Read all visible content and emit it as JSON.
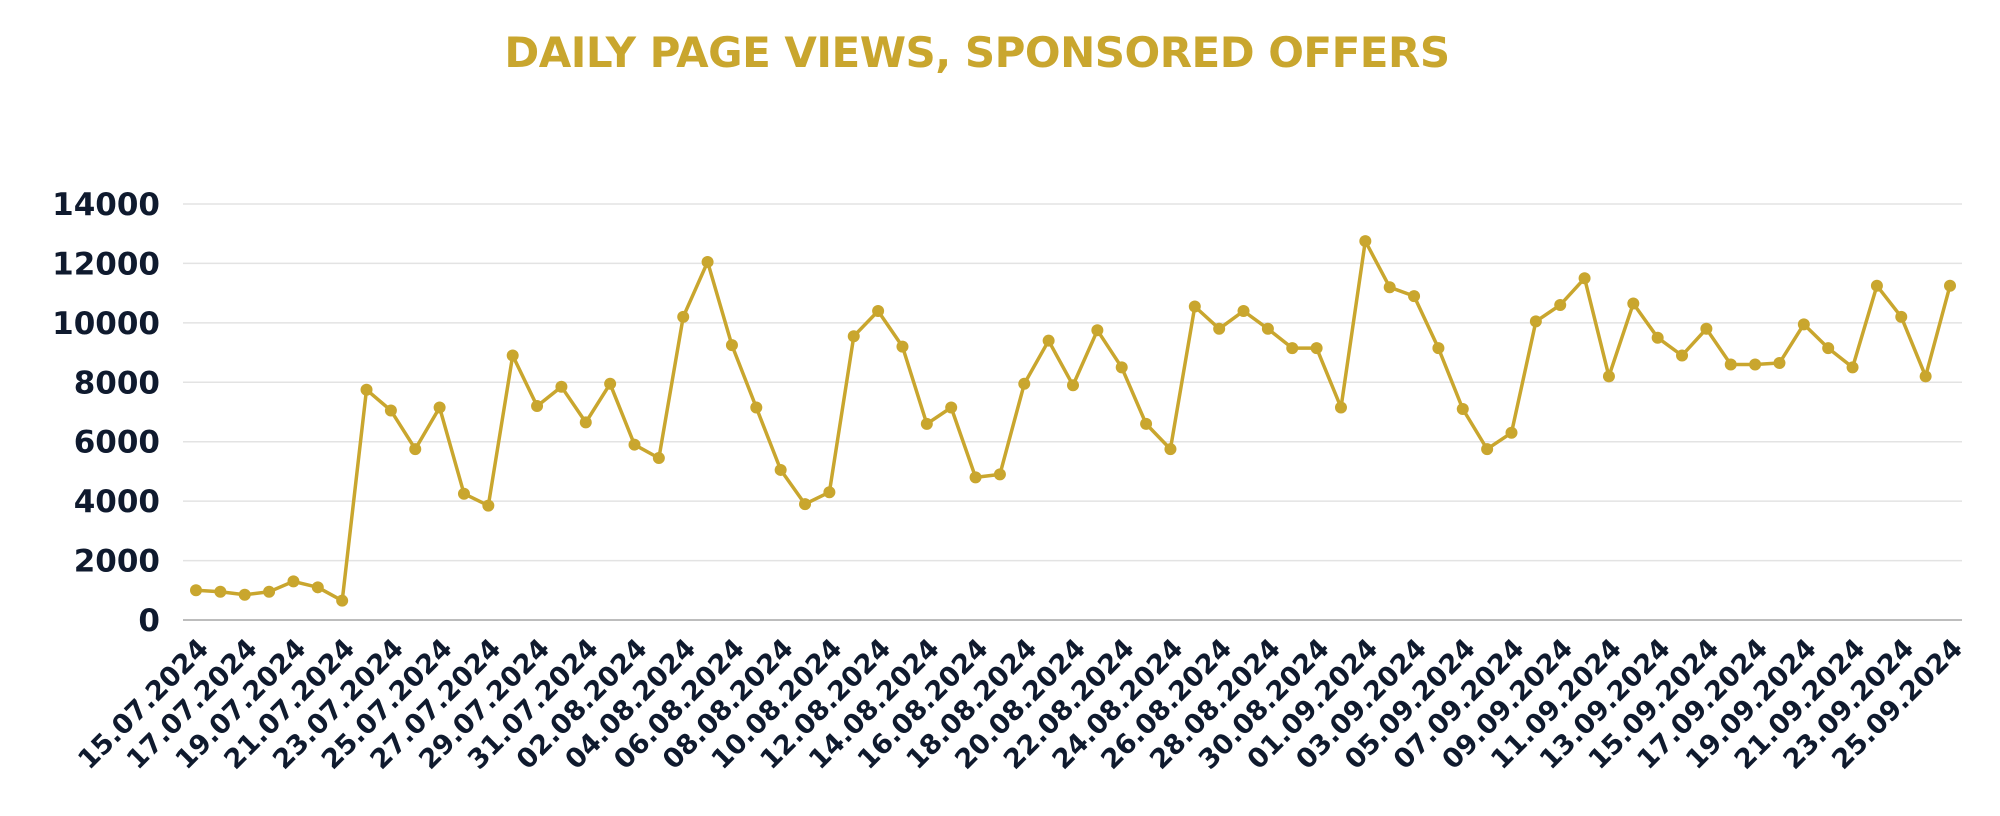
{
  "chart_data": {
    "type": "line",
    "title": "DAILY PAGE VIEWS, SPONSORED OFFERS",
    "xlabel": "",
    "ylabel": "",
    "ylim": [
      0,
      14000
    ],
    "yticks": [
      "0",
      "2000",
      "4000",
      "6000",
      "8000",
      "10000",
      "12000",
      "14000"
    ],
    "grid": true,
    "legend": "none",
    "colors": {
      "series": "#C9A62E",
      "title": "#C9A62E",
      "axis_text": "#0f1a2e"
    },
    "x_tick_labels": [
      "15.07.2024",
      "17.07.2024",
      "19.07.2024",
      "21.07.2024",
      "23.07.2024",
      "25.07.2024",
      "27.07.2024",
      "29.07.2024",
      "31.07.2024",
      "02.08.2024",
      "04.08.2024",
      "06.08.2024",
      "08.08.2024",
      "10.08.2024",
      "12.08.2024",
      "14.08.2024",
      "16.08.2024",
      "18.08.2024",
      "20.08.2024",
      "22.08.2024",
      "24.08.2024",
      "26.08.2024",
      "28.08.2024",
      "30.08.2024",
      "01.09.2024",
      "03.09.2024",
      "05.09.2024",
      "07.09.2024",
      "09.09.2024",
      "11.09.2024",
      "13.09.2024",
      "15.09.2024",
      "17.09.2024",
      "19.09.2024",
      "21.09.2024",
      "23.09.2024",
      "25.09.2024"
    ],
    "x_start": "15.07.2024",
    "x_end": "25.09.2024",
    "series": [
      {
        "values": [
          1000,
          950,
          850,
          950,
          1300,
          1100,
          650,
          7750,
          7050,
          5750,
          7150,
          4250,
          3850,
          8900,
          7200,
          7850,
          6650,
          7950,
          5900,
          5450,
          10200,
          12050,
          9250,
          7150,
          5050,
          3900,
          4300,
          9550,
          10400,
          9200,
          6600,
          7150,
          4800,
          4900,
          7950,
          9400,
          7900,
          9750,
          8500,
          6600,
          5750,
          10550,
          9800,
          10400,
          9800,
          9150,
          9150,
          7150,
          12750,
          11200,
          10900,
          9150,
          7100,
          5750,
          6300,
          10050,
          10600,
          11500,
          8200,
          10650,
          9500,
          8900,
          9800,
          8600,
          8600,
          8650,
          9950,
          9150,
          8500,
          11250,
          10200,
          8200,
          11250
        ]
      }
    ]
  }
}
